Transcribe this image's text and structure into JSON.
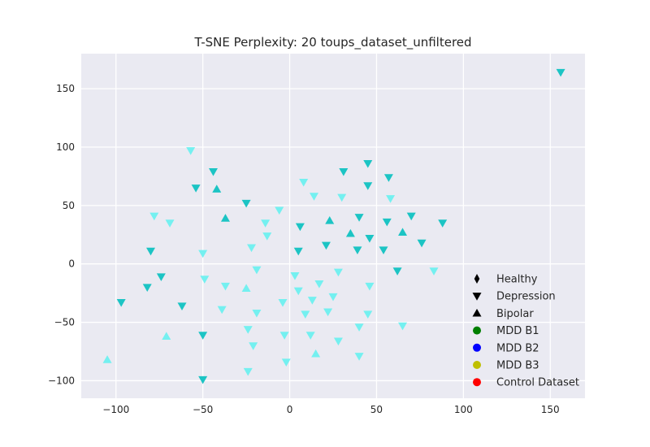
{
  "chart_data": {
    "type": "scatter",
    "title": "T-SNE Perplexity: 20 toups_dataset_unfiltered",
    "xlabel": "",
    "ylabel": "",
    "xlim": [
      -120,
      170
    ],
    "ylim": [
      -115,
      180
    ],
    "xticks": [
      -100,
      -50,
      0,
      50,
      100,
      150
    ],
    "yticks": [
      -100,
      -50,
      0,
      50,
      100,
      150
    ],
    "xtick_labels": [
      "−100",
      "−50",
      "0",
      "50",
      "100",
      "150"
    ],
    "ytick_labels": [
      "−100",
      "−50",
      "0",
      "50",
      "100",
      "150"
    ],
    "grid": true,
    "background": "#eaeaf2",
    "legend_position": "bottom-right",
    "legend": [
      {
        "label": "Healthy",
        "marker": "diamond",
        "color": "#000000"
      },
      {
        "label": "Depression",
        "marker": "triangle-down",
        "color": "#000000"
      },
      {
        "label": "Bipolar",
        "marker": "triangle-up",
        "color": "#000000"
      },
      {
        "label": "MDD B1",
        "marker": "circle",
        "color": "#007f00"
      },
      {
        "label": "MDD B2",
        "marker": "circle",
        "color": "#0000ff"
      },
      {
        "label": "MDD B3",
        "marker": "circle",
        "color": "#bfbf00"
      },
      {
        "label": "Control Dataset",
        "marker": "circle",
        "color": "#ff0000"
      }
    ],
    "colors": {
      "dark": "#1cc4c4",
      "light": "#74f0f0"
    },
    "points": [
      {
        "x": 156,
        "y": 164,
        "marker": "down",
        "shade": "dark"
      },
      {
        "x": -57,
        "y": 97,
        "marker": "down",
        "shade": "light"
      },
      {
        "x": -44,
        "y": 79,
        "marker": "down",
        "shade": "dark"
      },
      {
        "x": -54,
        "y": 65,
        "marker": "down",
        "shade": "dark"
      },
      {
        "x": -42,
        "y": 64,
        "marker": "up",
        "shade": "dark"
      },
      {
        "x": -25,
        "y": 52,
        "marker": "down",
        "shade": "dark"
      },
      {
        "x": -37,
        "y": 39,
        "marker": "up",
        "shade": "dark"
      },
      {
        "x": -78,
        "y": 41,
        "marker": "down",
        "shade": "light"
      },
      {
        "x": -69,
        "y": 35,
        "marker": "down",
        "shade": "light"
      },
      {
        "x": -80,
        "y": 11,
        "marker": "down",
        "shade": "dark"
      },
      {
        "x": -50,
        "y": 9,
        "marker": "down",
        "shade": "light"
      },
      {
        "x": -6,
        "y": 46,
        "marker": "down",
        "shade": "light"
      },
      {
        "x": -14,
        "y": 35,
        "marker": "down",
        "shade": "light"
      },
      {
        "x": -13,
        "y": 24,
        "marker": "down",
        "shade": "light"
      },
      {
        "x": -22,
        "y": 14,
        "marker": "down",
        "shade": "light"
      },
      {
        "x": 8,
        "y": 70,
        "marker": "down",
        "shade": "light"
      },
      {
        "x": 14,
        "y": 58,
        "marker": "down",
        "shade": "light"
      },
      {
        "x": 31,
        "y": 79,
        "marker": "down",
        "shade": "dark"
      },
      {
        "x": 45,
        "y": 86,
        "marker": "down",
        "shade": "dark"
      },
      {
        "x": 57,
        "y": 74,
        "marker": "down",
        "shade": "dark"
      },
      {
        "x": 45,
        "y": 67,
        "marker": "down",
        "shade": "dark"
      },
      {
        "x": 30,
        "y": 57,
        "marker": "down",
        "shade": "light"
      },
      {
        "x": 58,
        "y": 56,
        "marker": "down",
        "shade": "light"
      },
      {
        "x": 6,
        "y": 32,
        "marker": "down",
        "shade": "dark"
      },
      {
        "x": 23,
        "y": 37,
        "marker": "up",
        "shade": "dark"
      },
      {
        "x": 40,
        "y": 40,
        "marker": "down",
        "shade": "dark"
      },
      {
        "x": 56,
        "y": 36,
        "marker": "down",
        "shade": "dark"
      },
      {
        "x": 70,
        "y": 41,
        "marker": "down",
        "shade": "dark"
      },
      {
        "x": 88,
        "y": 35,
        "marker": "down",
        "shade": "dark"
      },
      {
        "x": 35,
        "y": 26,
        "marker": "up",
        "shade": "dark"
      },
      {
        "x": 46,
        "y": 22,
        "marker": "down",
        "shade": "dark"
      },
      {
        "x": 65,
        "y": 27,
        "marker": "up",
        "shade": "dark"
      },
      {
        "x": 76,
        "y": 18,
        "marker": "down",
        "shade": "dark"
      },
      {
        "x": 21,
        "y": 16,
        "marker": "down",
        "shade": "dark"
      },
      {
        "x": 5,
        "y": 11,
        "marker": "down",
        "shade": "dark"
      },
      {
        "x": 39,
        "y": 12,
        "marker": "down",
        "shade": "dark"
      },
      {
        "x": 54,
        "y": 12,
        "marker": "down",
        "shade": "dark"
      },
      {
        "x": -74,
        "y": -11,
        "marker": "down",
        "shade": "dark"
      },
      {
        "x": -82,
        "y": -20,
        "marker": "down",
        "shade": "dark"
      },
      {
        "x": -97,
        "y": -33,
        "marker": "down",
        "shade": "dark"
      },
      {
        "x": -49,
        "y": -13,
        "marker": "down",
        "shade": "light"
      },
      {
        "x": -37,
        "y": -19,
        "marker": "down",
        "shade": "light"
      },
      {
        "x": -25,
        "y": -21,
        "marker": "up",
        "shade": "light"
      },
      {
        "x": -19,
        "y": -5,
        "marker": "down",
        "shade": "light"
      },
      {
        "x": -62,
        "y": -36,
        "marker": "down",
        "shade": "dark"
      },
      {
        "x": -39,
        "y": -39,
        "marker": "down",
        "shade": "light"
      },
      {
        "x": -19,
        "y": -42,
        "marker": "down",
        "shade": "light"
      },
      {
        "x": -71,
        "y": -62,
        "marker": "up",
        "shade": "light"
      },
      {
        "x": -50,
        "y": -61,
        "marker": "down",
        "shade": "dark"
      },
      {
        "x": -24,
        "y": -56,
        "marker": "down",
        "shade": "light"
      },
      {
        "x": -21,
        "y": -70,
        "marker": "down",
        "shade": "light"
      },
      {
        "x": -105,
        "y": -82,
        "marker": "up",
        "shade": "light"
      },
      {
        "x": -50,
        "y": -99,
        "marker": "down",
        "shade": "dark"
      },
      {
        "x": -24,
        "y": -92,
        "marker": "down",
        "shade": "light"
      },
      {
        "x": 3,
        "y": -10,
        "marker": "down",
        "shade": "light"
      },
      {
        "x": 5,
        "y": -23,
        "marker": "down",
        "shade": "light"
      },
      {
        "x": 17,
        "y": -17,
        "marker": "down",
        "shade": "light"
      },
      {
        "x": 28,
        "y": -7,
        "marker": "down",
        "shade": "light"
      },
      {
        "x": 25,
        "y": -28,
        "marker": "down",
        "shade": "light"
      },
      {
        "x": 13,
        "y": -31,
        "marker": "down",
        "shade": "light"
      },
      {
        "x": -4,
        "y": -33,
        "marker": "down",
        "shade": "light"
      },
      {
        "x": 9,
        "y": -43,
        "marker": "down",
        "shade": "light"
      },
      {
        "x": 22,
        "y": -41,
        "marker": "down",
        "shade": "light"
      },
      {
        "x": 46,
        "y": -19,
        "marker": "down",
        "shade": "light"
      },
      {
        "x": 45,
        "y": -43,
        "marker": "down",
        "shade": "light"
      },
      {
        "x": 62,
        "y": -6,
        "marker": "down",
        "shade": "dark"
      },
      {
        "x": 83,
        "y": -6,
        "marker": "down",
        "shade": "light"
      },
      {
        "x": 65,
        "y": -53,
        "marker": "down",
        "shade": "light"
      },
      {
        "x": 40,
        "y": -54,
        "marker": "down",
        "shade": "light"
      },
      {
        "x": 12,
        "y": -61,
        "marker": "down",
        "shade": "light"
      },
      {
        "x": -3,
        "y": -61,
        "marker": "down",
        "shade": "light"
      },
      {
        "x": 28,
        "y": -66,
        "marker": "down",
        "shade": "light"
      },
      {
        "x": 15,
        "y": -77,
        "marker": "up",
        "shade": "light"
      },
      {
        "x": 40,
        "y": -79,
        "marker": "down",
        "shade": "light"
      },
      {
        "x": -2,
        "y": -84,
        "marker": "down",
        "shade": "light"
      }
    ]
  }
}
